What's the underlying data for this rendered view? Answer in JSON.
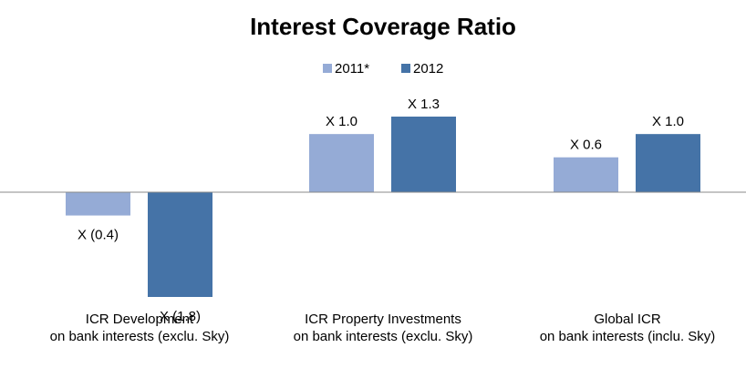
{
  "chart_data": {
    "type": "bar",
    "title": "Interest Coverage Ratio",
    "categories": [
      "ICR Development\non bank interests (exclu. Sky)",
      "ICR Property Investments\non bank interests (exclu. Sky)",
      "Global ICR\non bank interests (inclu. Sky)"
    ],
    "series": [
      {
        "name": "2011*",
        "color": "#95abd6",
        "values": [
          -0.4,
          1.0,
          0.6
        ],
        "value_labels": [
          "X (0.4)",
          "X 1.0",
          "X 0.6"
        ]
      },
      {
        "name": "2012",
        "color": "#4573a7",
        "values": [
          -1.8,
          1.3,
          1.0
        ],
        "value_labels": [
          "X (1.8)",
          "X 1.3",
          "X 1.0"
        ]
      }
    ],
    "legend": "top"
  }
}
